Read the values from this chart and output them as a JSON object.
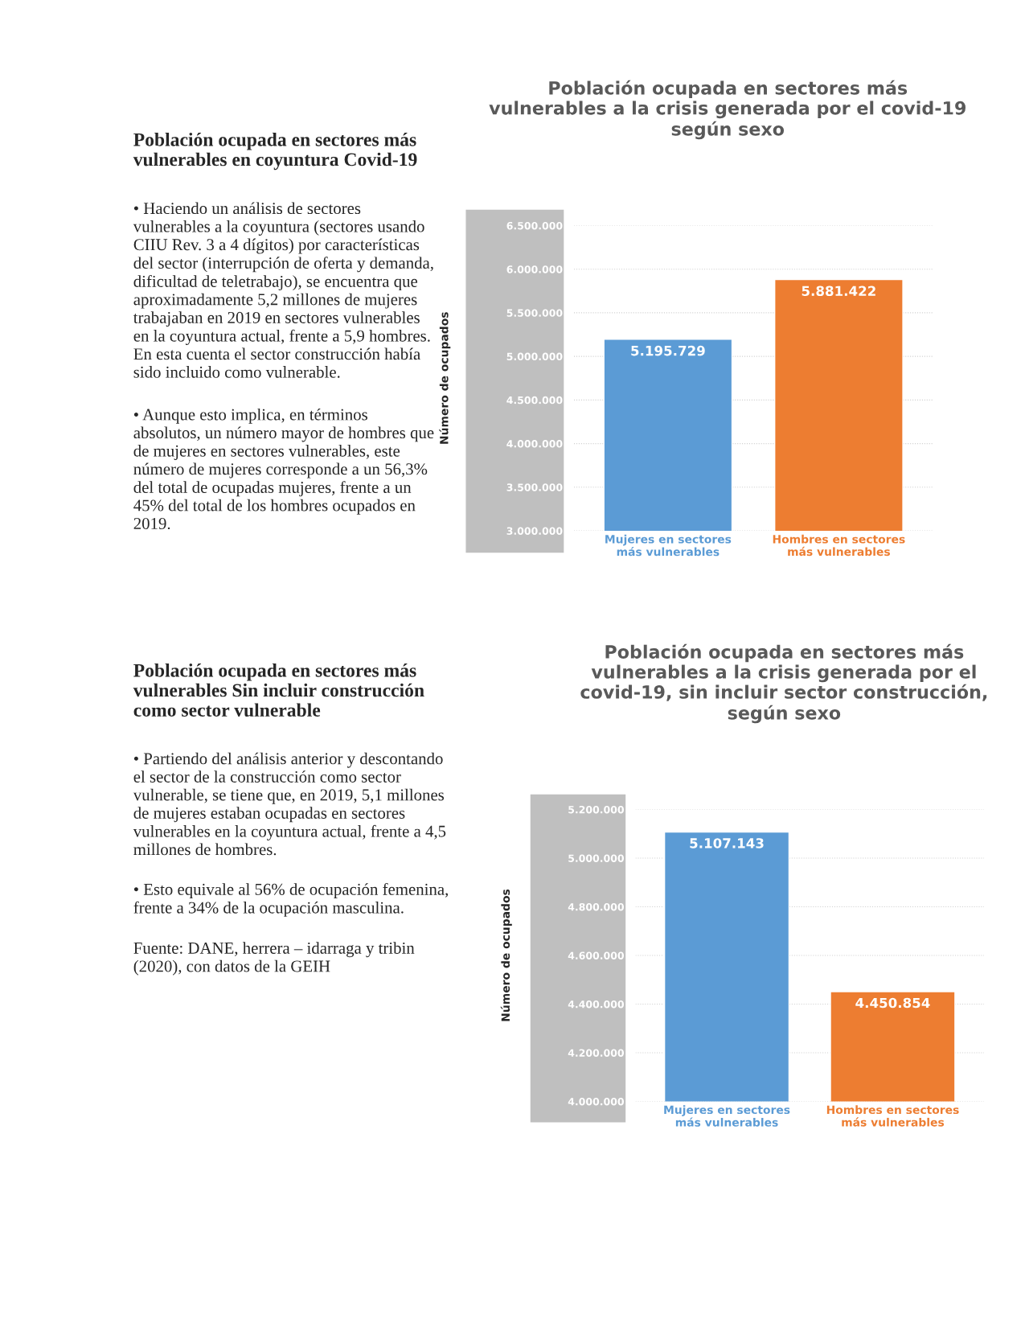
{
  "chart_data": [
    {
      "type": "other",
      "title": "Población ocupada en sectores más vulnerables en coyuntura Covid-19",
      "annotations": [
        "• Haciendo un análisis de sectores vulnerables a la coyuntura (sectores usando CIIU Rev. 3 a 4 dígitos) por características del sector (interrupción de oferta y demanda, dificultad de teletrabajo), se encuentra que aproximadamente 5,2 millones de mujeres trabajaban en 2019 en sectores vulnerables en la coyuntura actual, frente a 5,9 hombres. En esta cuenta el sector construcción había sido incluido como vulnerable.",
        "• Aunque esto implica, en términos absolutos, un número mayor de hombres que de mujeres en sectores vulnerables, este número de mujeres corresponde a un 56,3% del total de ocupadas mujeres, frente a un 45% del total de los hombres ocupados en 2019."
      ]
    },
    {
      "type": "bar",
      "title": "Población ocupada en sectores más vulnerables a la crisis generada por el covid-19 según sexo",
      "ylabel": "Número de ocupados",
      "categories": [
        "Mujeres en sectores más vulnerables",
        "Hombres en sectores más vulnerables"
      ],
      "values": [
        5195729,
        5881422
      ],
      "value_labels": [
        "5.195.729",
        "5.881.422"
      ],
      "colors": [
        "#5b9bd5",
        "#ed7d31"
      ],
      "ylim": [
        3000000,
        6500000
      ],
      "yticks": [
        {
          "value": 3000000,
          "label": "3.000.000"
        },
        {
          "value": 3500000,
          "label": "3.500.000"
        },
        {
          "value": 4000000,
          "label": "4.000.000"
        },
        {
          "value": 4500000,
          "label": "4.500.000"
        },
        {
          "value": 5000000,
          "label": "5.000.000"
        },
        {
          "value": 5500000,
          "label": "5.500.000"
        },
        {
          "value": 6000000,
          "label": "6.000.000"
        },
        {
          "value": 6500000,
          "label": "6.500.000"
        }
      ],
      "grid": "y"
    },
    {
      "type": "other",
      "title": "Población ocupada en sectores más vulnerables Sin incluir construcción como sector vulnerable",
      "annotations": [
        "• Partiendo del análisis anterior y descontando el sector de la construcción como sector vulnerable, se tiene que, en 2019, 5,1 millones de mujeres estaban ocupadas en sectores vulnerables en la coyuntura actual, frente a 4,5 millones de hombres.",
        "• Esto equivale al 56% de ocupación femenina, frente a 34% de la ocupación masculina.",
        "Fuente: DANE, herrera – idarraga y tribin (2020), con datos de la GEIH"
      ]
    },
    {
      "type": "bar",
      "title": "Población ocupada en sectores más vulnerables a la crisis generada por el covid-19, sin incluir sector construcción, según sexo",
      "ylabel": "Número de ocupados",
      "categories": [
        "Mujeres en sectores más vulnerables",
        "Hombres en sectores más vulnerables"
      ],
      "values": [
        5107143,
        4450854
      ],
      "value_labels": [
        "5.107.143",
        "4.450.854"
      ],
      "colors": [
        "#5b9bd5",
        "#ed7d31"
      ],
      "ylim": [
        4000000,
        5200000
      ],
      "yticks": [
        {
          "value": 4000000,
          "label": "4.000.000"
        },
        {
          "value": 4200000,
          "label": "4.200.000"
        },
        {
          "value": 4400000,
          "label": "4.400.000"
        },
        {
          "value": 4600000,
          "label": "4.600.000"
        },
        {
          "value": 4800000,
          "label": "4.800.000"
        },
        {
          "value": 5000000,
          "label": "5.000.000"
        },
        {
          "value": 5200000,
          "label": "5.200.000"
        }
      ],
      "grid": "y"
    }
  ]
}
